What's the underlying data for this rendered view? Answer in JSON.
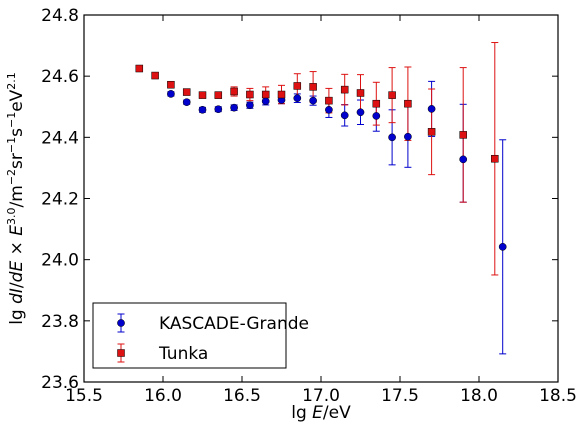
{
  "chart_data": {
    "type": "scatter",
    "xlabel": "lg E/eV",
    "ylabel": "lg dI/dE × E^3.0/m^-2 sr^-1 s^-1 eV^2.1",
    "xlim": [
      15.5,
      18.5
    ],
    "ylim": [
      23.6,
      24.8
    ],
    "xticks": [
      "15.5",
      "16.0",
      "16.5",
      "17.0",
      "17.5",
      "18.0",
      "18.5"
    ],
    "yticks": [
      "23.6",
      "23.8",
      "24.0",
      "24.2",
      "24.4",
      "24.6",
      "24.8"
    ],
    "grid": false,
    "legend_position": "bottom-left",
    "series": [
      {
        "name": "KASCADE-Grande",
        "color": "#0000cc",
        "marker": "circle",
        "x": [
          16.05,
          16.15,
          16.25,
          16.35,
          16.45,
          16.55,
          16.65,
          16.75,
          16.85,
          16.95,
          17.05,
          17.15,
          17.25,
          17.35,
          17.45,
          17.55,
          17.7,
          17.9,
          18.15
        ],
        "y": [
          24.542,
          24.515,
          24.49,
          24.492,
          24.497,
          24.505,
          24.518,
          24.522,
          24.528,
          24.52,
          24.49,
          24.472,
          24.482,
          24.47,
          24.4,
          24.402,
          24.493,
          24.328,
          24.042
        ],
        "yerr_low": [
          0.007,
          0.007,
          0.008,
          0.008,
          0.009,
          0.01,
          0.012,
          0.012,
          0.014,
          0.015,
          0.025,
          0.035,
          0.04,
          0.05,
          0.09,
          0.1,
          0.09,
          0.14,
          0.35
        ],
        "yerr_high": [
          0.007,
          0.007,
          0.008,
          0.008,
          0.009,
          0.01,
          0.012,
          0.012,
          0.014,
          0.015,
          0.025,
          0.035,
          0.04,
          0.05,
          0.09,
          0.1,
          0.09,
          0.18,
          0.35
        ]
      },
      {
        "name": "Tunka",
        "color": "#dd1111",
        "marker": "square",
        "x": [
          15.85,
          15.95,
          16.05,
          16.15,
          16.25,
          16.35,
          16.45,
          16.55,
          16.65,
          16.75,
          16.85,
          16.95,
          17.05,
          17.15,
          17.25,
          17.35,
          17.45,
          17.55,
          17.7,
          17.9,
          18.1
        ],
        "y": [
          24.625,
          24.602,
          24.572,
          24.548,
          24.538,
          24.538,
          24.55,
          24.54,
          24.54,
          24.54,
          24.568,
          24.565,
          24.52,
          24.556,
          24.545,
          24.51,
          24.538,
          24.51,
          24.418,
          24.408,
          24.33
        ],
        "yerr_low": [
          0.006,
          0.006,
          0.007,
          0.008,
          0.009,
          0.01,
          0.015,
          0.02,
          0.025,
          0.03,
          0.04,
          0.05,
          0.04,
          0.05,
          0.06,
          0.07,
          0.09,
          0.12,
          0.14,
          0.22,
          0.38
        ],
        "yerr_high": [
          0.006,
          0.006,
          0.007,
          0.008,
          0.009,
          0.01,
          0.015,
          0.02,
          0.025,
          0.03,
          0.04,
          0.05,
          0.04,
          0.05,
          0.06,
          0.07,
          0.09,
          0.12,
          0.14,
          0.22,
          0.38
        ]
      }
    ]
  }
}
